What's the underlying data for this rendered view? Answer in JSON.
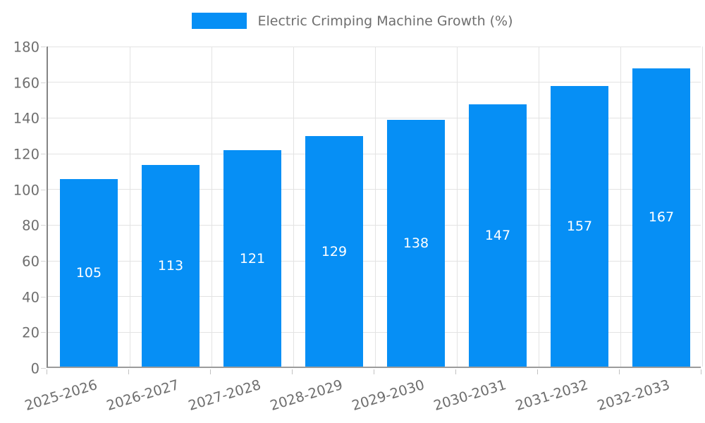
{
  "legend": {
    "label": "Electric Crimping Machine Growth (%)"
  },
  "chart_data": {
    "type": "bar",
    "title": "Electric Crimping Machine Growth (%)",
    "categories": [
      "2025-2026",
      "2026-2027",
      "2027-2028",
      "2028-2029",
      "2029-2030",
      "2030-2031",
      "2031-2032",
      "2032-2033"
    ],
    "values": [
      105,
      113,
      121,
      129,
      138,
      147,
      157,
      167
    ],
    "xlabel": "",
    "ylabel": "",
    "ylim": [
      0,
      180
    ],
    "ytick_step": 20,
    "ytick_labels": [
      "0",
      "20",
      "40",
      "60",
      "80",
      "100",
      "120",
      "140",
      "160",
      "180"
    ],
    "grid": true,
    "legend_position": "top-center",
    "value_labels": "centered-inside-bars-white",
    "colors": {
      "bar": "#068ff5",
      "grid": "#e3e3e3",
      "axis": "#8c8c8c",
      "tick_text": "#6e6e6e",
      "legend_text": "#6e6e6e",
      "value_label": "#ffffff",
      "background": "#ffffff"
    }
  }
}
